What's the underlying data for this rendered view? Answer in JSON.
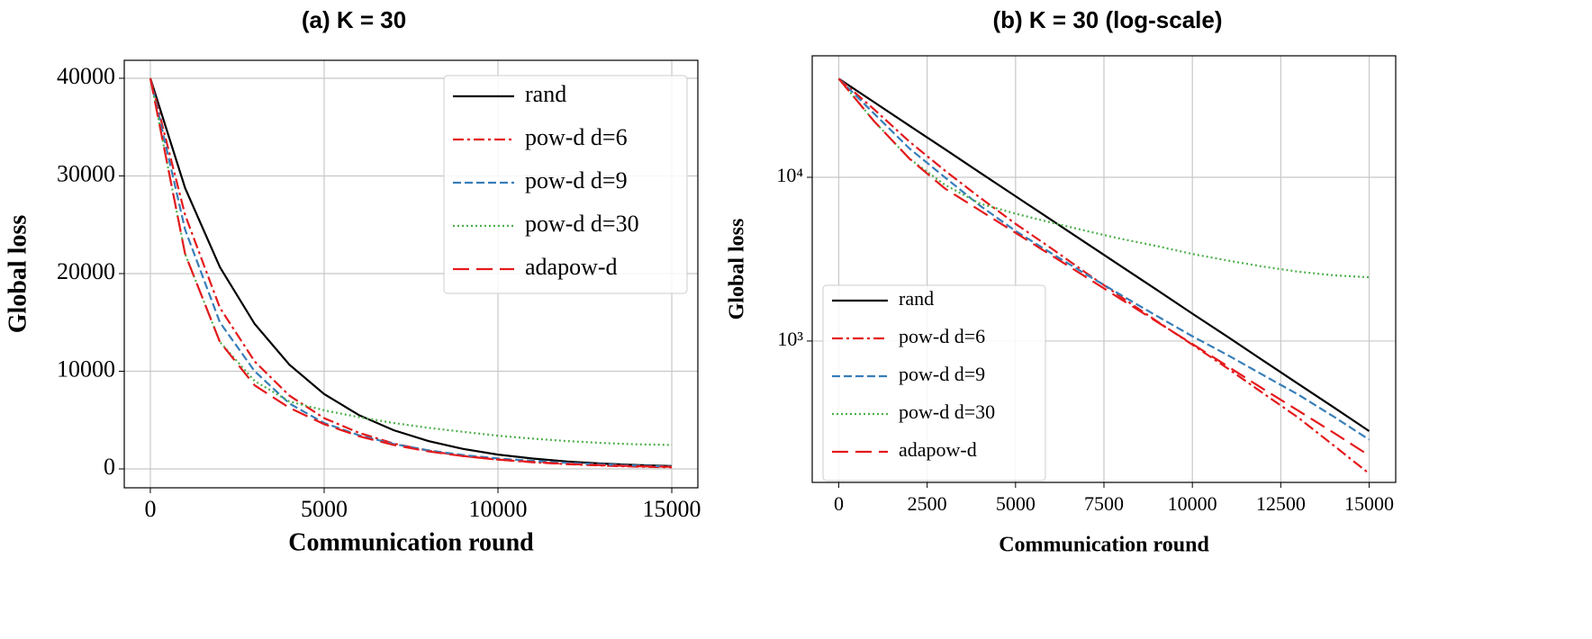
{
  "chart_data": [
    {
      "type": "line",
      "title": "(a) K = 30",
      "x_label": "Communication round",
      "y_label": "Global loss",
      "x": [
        0,
        1000,
        2000,
        3000,
        4000,
        5000,
        6000,
        7000,
        8000,
        9000,
        10000,
        11000,
        12000,
        13000,
        14000,
        15000
      ],
      "series": [
        {
          "name": "rand",
          "color": "#000000",
          "linestyle": "solid",
          "values": [
            40000,
            28750,
            20660,
            14850,
            10670,
            7670,
            5510,
            3960,
            2850,
            2050,
            1470,
            1060,
            760,
            546,
            393,
            282
          ]
        },
        {
          "name": "pow-d d=6",
          "color": "#e41a1c",
          "linestyle": "dashdot",
          "values": [
            40000,
            26000,
            16500,
            11000,
            7500,
            5200,
            3700,
            2600,
            1850,
            1320,
            950,
            680,
            480,
            340,
            230,
            155
          ]
        },
        {
          "name": "pow-d d=9",
          "color": "#377eb8",
          "linestyle": "dashed",
          "values": [
            40000,
            24500,
            15000,
            10000,
            6700,
            4700,
            3450,
            2550,
            1900,
            1420,
            1070,
            820,
            620,
            470,
            345,
            250
          ]
        },
        {
          "name": "pow-d d=30",
          "color": "#4daf4a",
          "linestyle": "dotted",
          "values": [
            40000,
            22000,
            13000,
            9000,
            6900,
            6000,
            5300,
            4700,
            4200,
            3800,
            3400,
            3100,
            2850,
            2650,
            2520,
            2450
          ]
        },
        {
          "name": "adapow-d",
          "color": "#e41a1c",
          "linestyle": "longdash",
          "values": [
            40000,
            22000,
            13000,
            8550,
            6260,
            4580,
            3350,
            2450,
            1790,
            1310,
            960,
            700,
            510,
            375,
            275,
            200
          ]
        }
      ],
      "xlim": [
        -750,
        15750
      ],
      "xticks": [
        0,
        5000,
        10000,
        15000
      ],
      "ylim": [
        -1935,
        41840
      ],
      "yticks": [
        0,
        10000,
        20000,
        30000,
        40000
      ],
      "log_y": false,
      "grid": true,
      "legend": "upper right"
    },
    {
      "type": "line",
      "title": "(b) K = 30 (log-scale)",
      "x_label": "Communication round",
      "y_label": "Global loss",
      "x": [
        0,
        1000,
        2000,
        3000,
        4000,
        5000,
        6000,
        7000,
        8000,
        9000,
        10000,
        11000,
        12000,
        13000,
        14000,
        15000
      ],
      "series": [
        {
          "name": "rand",
          "color": "#000000",
          "linestyle": "solid",
          "values": [
            40000,
            28750,
            20660,
            14850,
            10670,
            7670,
            5510,
            3960,
            2850,
            2050,
            1470,
            1060,
            760,
            546,
            393,
            282
          ]
        },
        {
          "name": "pow-d d=6",
          "color": "#e41a1c",
          "linestyle": "dashdot",
          "values": [
            40000,
            26000,
            16500,
            11000,
            7500,
            5200,
            3700,
            2600,
            1850,
            1320,
            950,
            680,
            480,
            340,
            230,
            155
          ]
        },
        {
          "name": "pow-d d=9",
          "color": "#377eb8",
          "linestyle": "dashed",
          "values": [
            40000,
            24500,
            15000,
            10000,
            6700,
            4700,
            3450,
            2550,
            1900,
            1420,
            1070,
            820,
            620,
            470,
            345,
            250
          ]
        },
        {
          "name": "pow-d d=30",
          "color": "#4daf4a",
          "linestyle": "dotted",
          "values": [
            40000,
            22000,
            13000,
            9000,
            6900,
            6000,
            5300,
            4700,
            4200,
            3800,
            3400,
            3100,
            2850,
            2650,
            2520,
            2450
          ]
        },
        {
          "name": "adapow-d",
          "color": "#e41a1c",
          "linestyle": "longdash",
          "values": [
            40000,
            22000,
            13000,
            8550,
            6260,
            4580,
            3350,
            2450,
            1790,
            1310,
            960,
            700,
            510,
            375,
            275,
            200
          ]
        }
      ],
      "xlim": [
        -750,
        15750
      ],
      "xticks": [
        0,
        2500,
        5000,
        7500,
        10000,
        12500,
        15000
      ],
      "ylim": [
        137,
        55200
      ],
      "yticks": [
        {
          "value": 1000,
          "label": "10³"
        },
        {
          "value": 10000,
          "label": "10⁴"
        }
      ],
      "log_y": true,
      "grid": true,
      "legend": "lower left"
    }
  ]
}
